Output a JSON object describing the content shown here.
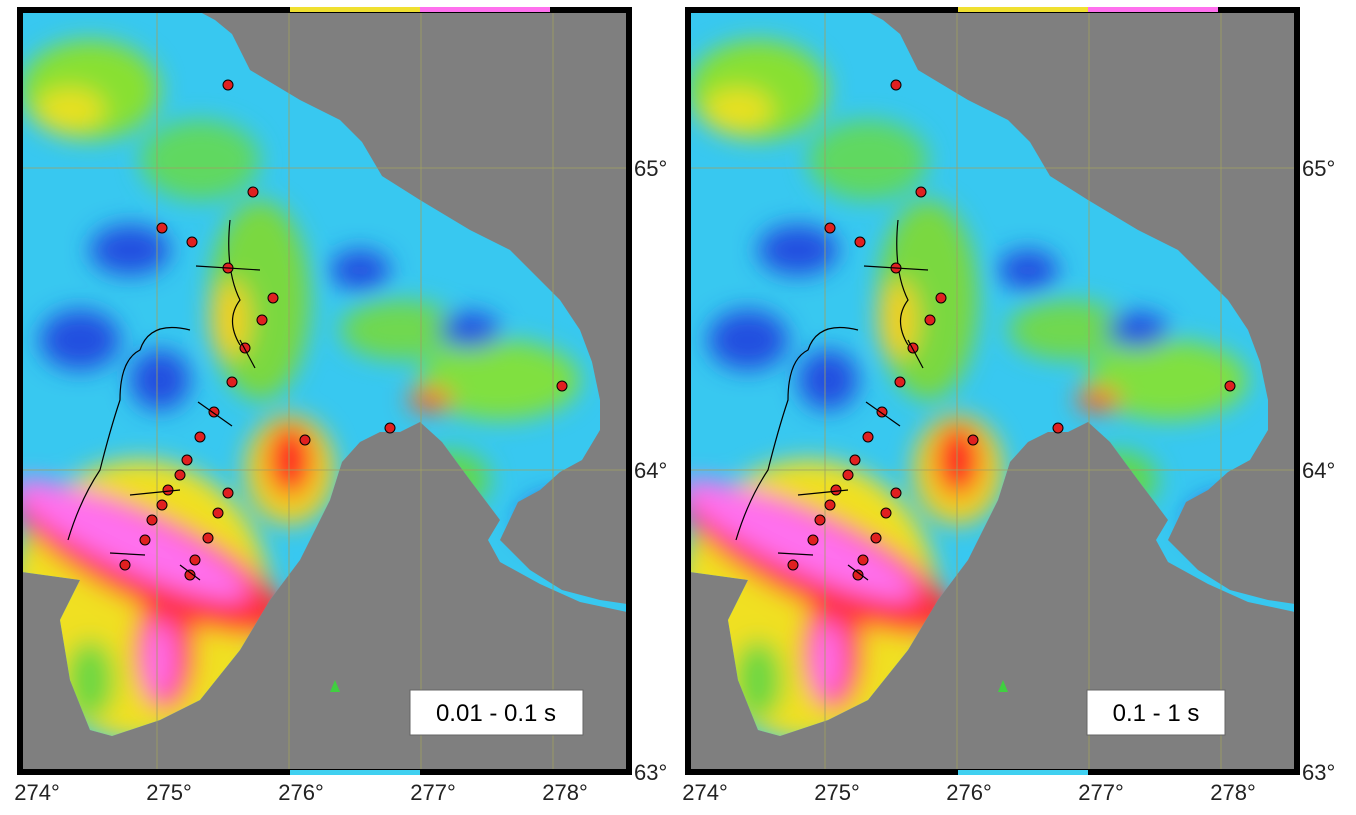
{
  "panels": [
    {
      "label": "0.01 - 0.1 s"
    },
    {
      "label": "0.1 - 1 s"
    }
  ],
  "lon_ticks": [
    {
      "value": 274,
      "label": "274°"
    },
    {
      "value": 275,
      "label": "275°"
    },
    {
      "value": 276,
      "label": "276°"
    },
    {
      "value": 277,
      "label": "277°"
    },
    {
      "value": 278,
      "label": "278°"
    }
  ],
  "lat_ticks": [
    {
      "value": 63,
      "label": "63°"
    },
    {
      "value": 64,
      "label": "64°"
    },
    {
      "value": 65,
      "label": "65°"
    }
  ]
}
